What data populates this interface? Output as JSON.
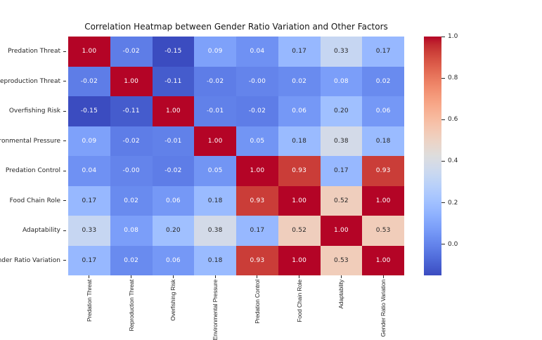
{
  "chart_data": {
    "type": "heatmap",
    "title": "Correlation Heatmap between Gender Ratio Variation and Other Factors",
    "categories": [
      "Predation Threat",
      "Reproduction Threat",
      "Overfishing Risk",
      "Environmental Pressure",
      "Predation Control",
      "Food Chain Role",
      "Adaptability",
      "Gender Ratio Variation"
    ],
    "values": [
      [
        "1.00",
        "-0.02",
        "-0.15",
        "0.09",
        "0.04",
        "0.17",
        "0.33",
        "0.17"
      ],
      [
        "-0.02",
        "1.00",
        "-0.11",
        "-0.02",
        "-0.00",
        "0.02",
        "0.08",
        "0.02"
      ],
      [
        "-0.15",
        "-0.11",
        "1.00",
        "-0.01",
        "-0.02",
        "0.06",
        "0.20",
        "0.06"
      ],
      [
        "0.09",
        "-0.02",
        "-0.01",
        "1.00",
        "0.05",
        "0.18",
        "0.38",
        "0.18"
      ],
      [
        "0.04",
        "-0.00",
        "-0.02",
        "0.05",
        "1.00",
        "0.93",
        "0.17",
        "0.93"
      ],
      [
        "0.17",
        "0.02",
        "0.06",
        "0.18",
        "0.93",
        "1.00",
        "0.52",
        "1.00"
      ],
      [
        "0.33",
        "0.08",
        "0.20",
        "0.38",
        "0.17",
        "0.52",
        "1.00",
        "0.53"
      ],
      [
        "0.17",
        "0.02",
        "0.06",
        "0.18",
        "0.93",
        "1.00",
        "0.53",
        "1.00"
      ]
    ],
    "colorbar": {
      "position": "right",
      "vmin": -0.15,
      "vmax": 1.0,
      "tick_labels": [
        "1.0",
        "0.8",
        "0.6",
        "0.4",
        "0.2",
        "0.0"
      ]
    },
    "colormap": {
      "name": "coolwarm",
      "stops": [
        "#3B4CC0",
        "#445ACC",
        "#4D68D7",
        "#5775E1",
        "#6282EA",
        "#6C8EF1",
        "#779AF7",
        "#82A5FB",
        "#8DB0FE",
        "#98B9FF",
        "#A3C2FF",
        "#AEC9FD",
        "#B8D0F9",
        "#C2D5F4",
        "#CCD9EE",
        "#D5DBE6",
        "#DDDDDD",
        "#E5D8D1",
        "#ECD3C5",
        "#F1CCB9",
        "#F5C4AD",
        "#F7BBA0",
        "#F7B194",
        "#F7A687",
        "#F49A7B",
        "#F18D6F",
        "#EC7F63",
        "#E57058",
        "#DE604D",
        "#D55042",
        "#CB3E38",
        "#C0282F",
        "#B40426"
      ]
    },
    "annotation_colors": {
      "on_dark": "#ffffff",
      "on_light": "#262626"
    },
    "layout_hints": {
      "x_tick_rotation": 90,
      "grid": false,
      "axis_labels_clipped_by_image_edge": true
    }
  }
}
